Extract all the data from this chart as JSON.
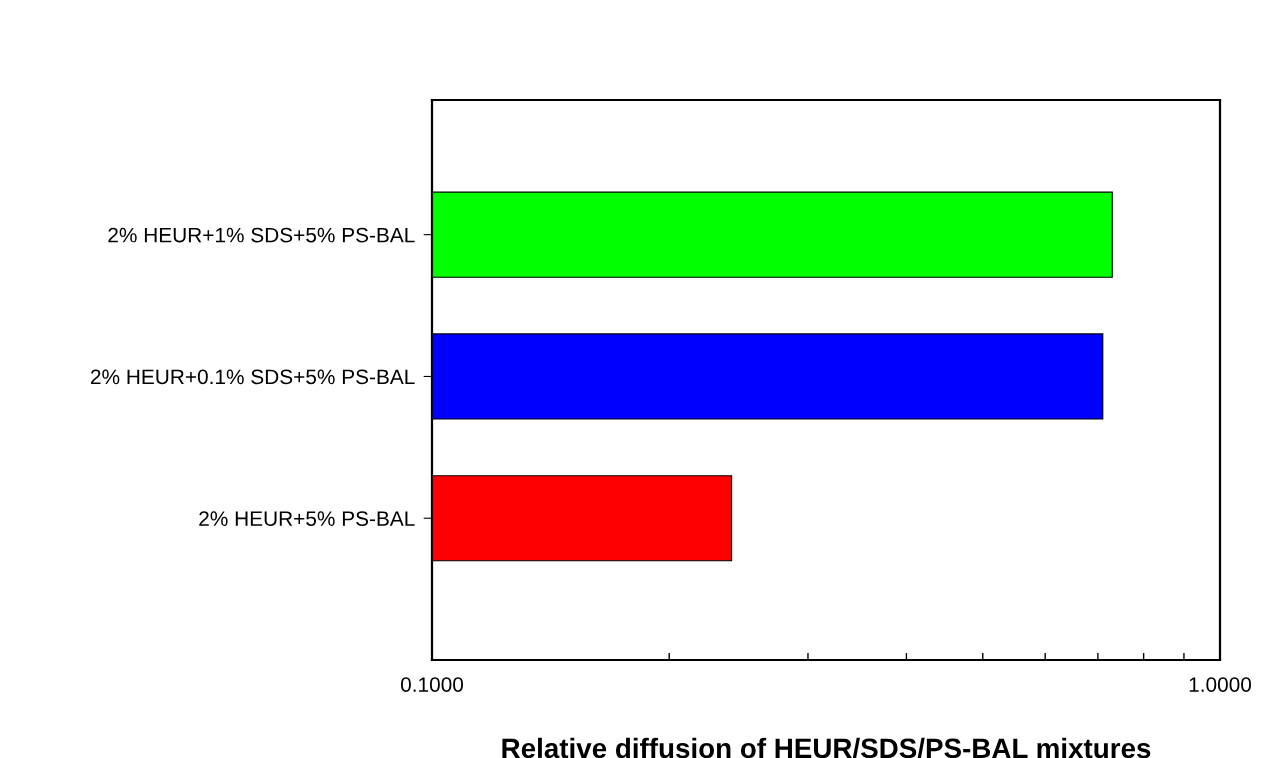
{
  "chart_data": {
    "type": "bar",
    "orientation": "horizontal",
    "log": "x",
    "xlabel": "Relative diffusion of HEUR/SDS/PS-BAL mixtures",
    "categories": [
      "2% HEUR+1% SDS+5% PS-BAL",
      "2% HEUR+0.1% SDS+5% PS-BAL",
      "2% HEUR+5% PS-BAL"
    ],
    "values": [
      0.73,
      0.71,
      0.24
    ],
    "colors": [
      "#00ff00",
      "#0000ff",
      "#ff0000"
    ],
    "xlim": [
      0.1,
      1.0
    ],
    "xticks": [
      {
        "value": 0.1,
        "label": "0.1000"
      },
      {
        "value": 0.2,
        "label": null
      },
      {
        "value": 0.3,
        "label": null
      },
      {
        "value": 0.4,
        "label": null
      },
      {
        "value": 0.5,
        "label": null
      },
      {
        "value": 0.6,
        "label": null
      },
      {
        "value": 0.7,
        "label": null
      },
      {
        "value": 0.8,
        "label": null
      },
      {
        "value": 0.9,
        "label": null
      },
      {
        "value": 1.0,
        "label": "1.0000"
      }
    ],
    "grid": false
  }
}
